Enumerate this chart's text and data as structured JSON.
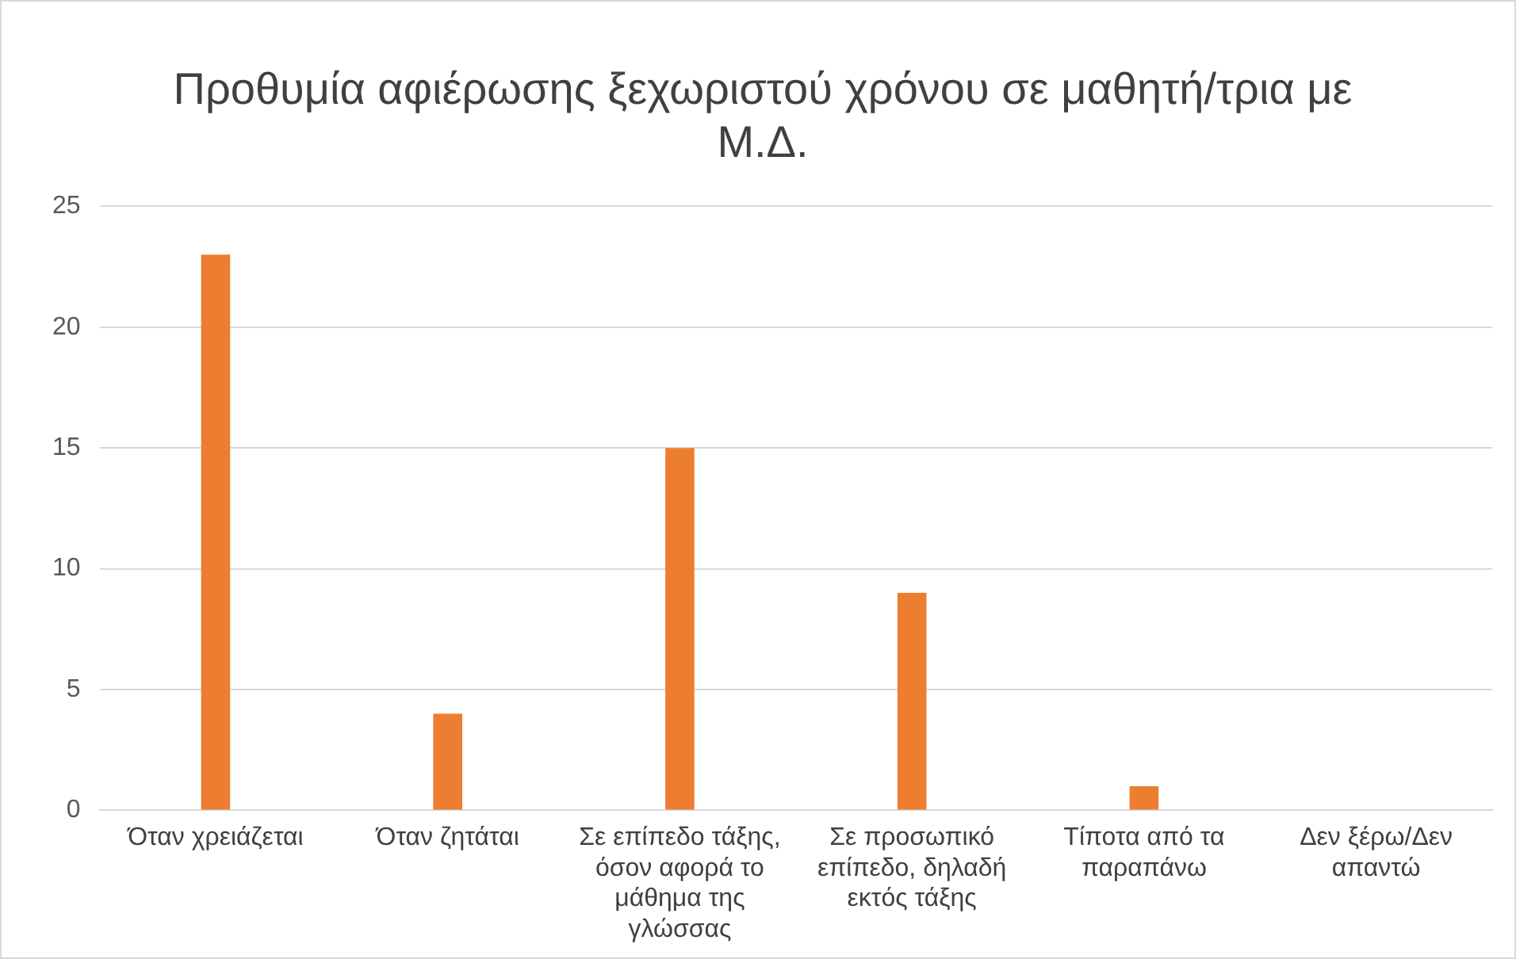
{
  "chart_data": {
    "type": "bar",
    "title": "Προθυμία αφιέρωσης ξεχωριστού χρόνου σε μαθητή/τρια με Μ.Δ.",
    "categories": [
      "Όταν χρειάζεται",
      "Όταν ζητάται",
      "Σε επίπεδο τάξης, όσον αφορά το μάθημα της γλώσσας",
      "Σε προσωπικό επίπεδο, δηλαδή εκτός τάξης",
      "Τίποτα από τα παραπάνω",
      "Δεν ξέρω/Δεν απαντώ"
    ],
    "values": [
      23,
      4,
      15,
      9,
      1,
      0
    ],
    "color": "#ed7d31",
    "ylim": [
      0,
      25
    ],
    "yticks": [
      0,
      5,
      10,
      15,
      20,
      25
    ],
    "grid": "y",
    "legend": false
  }
}
